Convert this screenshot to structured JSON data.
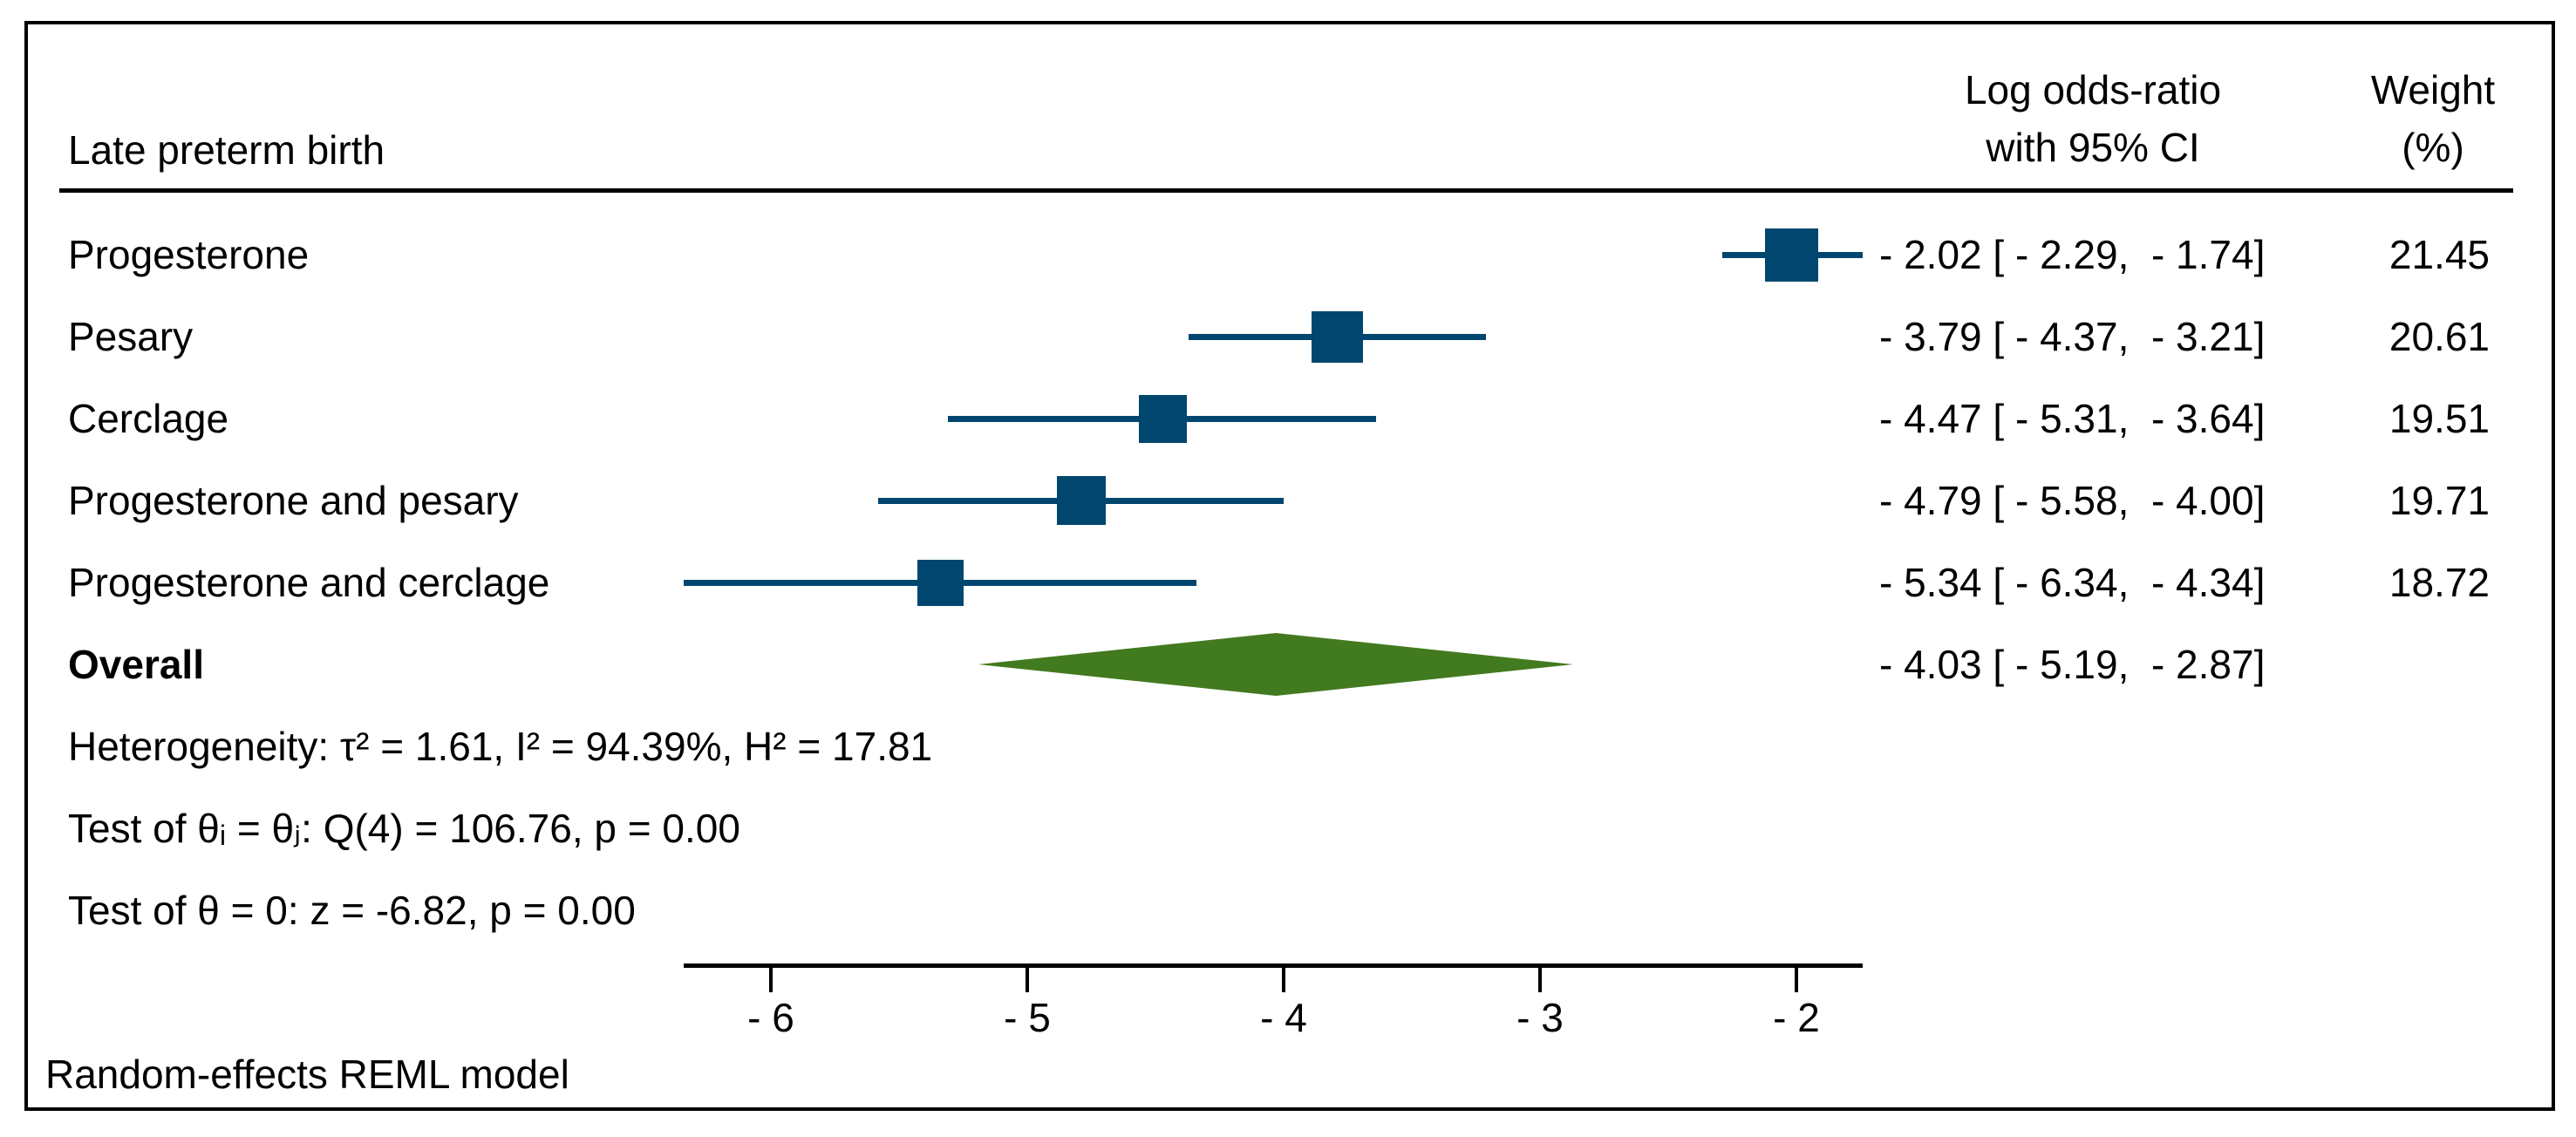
{
  "header": {
    "group_label": "Late preterm birth",
    "effect_col_line1": "Log odds-ratio",
    "effect_col_line2": "with 95% CI",
    "weight_col_line1": "Weight",
    "weight_col_line2": "(%)"
  },
  "stats": {
    "heterogeneity": "Heterogeneity: τ² = 1.61, I² = 94.39%, H² = 17.81",
    "test_between": "Test of θᵢ = θⱼ: Q(4) = 106.76, p = 0.00",
    "test_overall": "Test of θ = 0: z = -6.82, p = 0.00"
  },
  "footer": {
    "model_note": "Random-effects REML model"
  },
  "colors": {
    "marker": "#00466e",
    "ci_line": "#00466e",
    "diamond": "#427a1f",
    "frame": "#000000",
    "text": "#000000"
  },
  "chart_data": {
    "type": "scatter",
    "subtype": "forest-plot",
    "title": "Late preterm birth",
    "xlabel": "Log odds-ratio",
    "xlim": [
      -6.34,
      -1.74
    ],
    "x_ticks": [
      -6,
      -5,
      -4,
      -3,
      -2
    ],
    "x_tick_labels": [
      "- 6",
      "- 5",
      "- 4",
      "- 3",
      "- 2"
    ],
    "grid": false,
    "legend": "none",
    "studies": [
      {
        "label": "Progesterone",
        "est": -2.02,
        "lo": -2.29,
        "hi": -1.74,
        "weight": 21.45,
        "ci_text": "- 2.02 [ - 2.29,  - 1.74]",
        "weight_text": "21.45"
      },
      {
        "label": "Pesary",
        "est": -3.79,
        "lo": -4.37,
        "hi": -3.21,
        "weight": 20.61,
        "ci_text": "- 3.79 [ - 4.37,  - 3.21]",
        "weight_text": "20.61"
      },
      {
        "label": "Cerclage",
        "est": -4.47,
        "lo": -5.31,
        "hi": -3.64,
        "weight": 19.51,
        "ci_text": "- 4.47 [ - 5.31,  - 3.64]",
        "weight_text": "19.51"
      },
      {
        "label": "Progesterone and pesary",
        "est": -4.79,
        "lo": -5.58,
        "hi": -4.0,
        "weight": 19.71,
        "ci_text": "- 4.79 [ - 5.58,  - 4.00]",
        "weight_text": "19.71"
      },
      {
        "label": "Progesterone and cerclage",
        "est": -5.34,
        "lo": -6.34,
        "hi": -4.34,
        "weight": 18.72,
        "ci_text": "- 5.34 [ - 6.34,  - 4.34]",
        "weight_text": "18.72"
      }
    ],
    "overall": {
      "label": "Overall",
      "est": -4.03,
      "lo": -5.19,
      "hi": -2.87,
      "ci_text": "- 4.03 [ - 5.19,  - 2.87]"
    },
    "model": "Random-effects REML model"
  }
}
